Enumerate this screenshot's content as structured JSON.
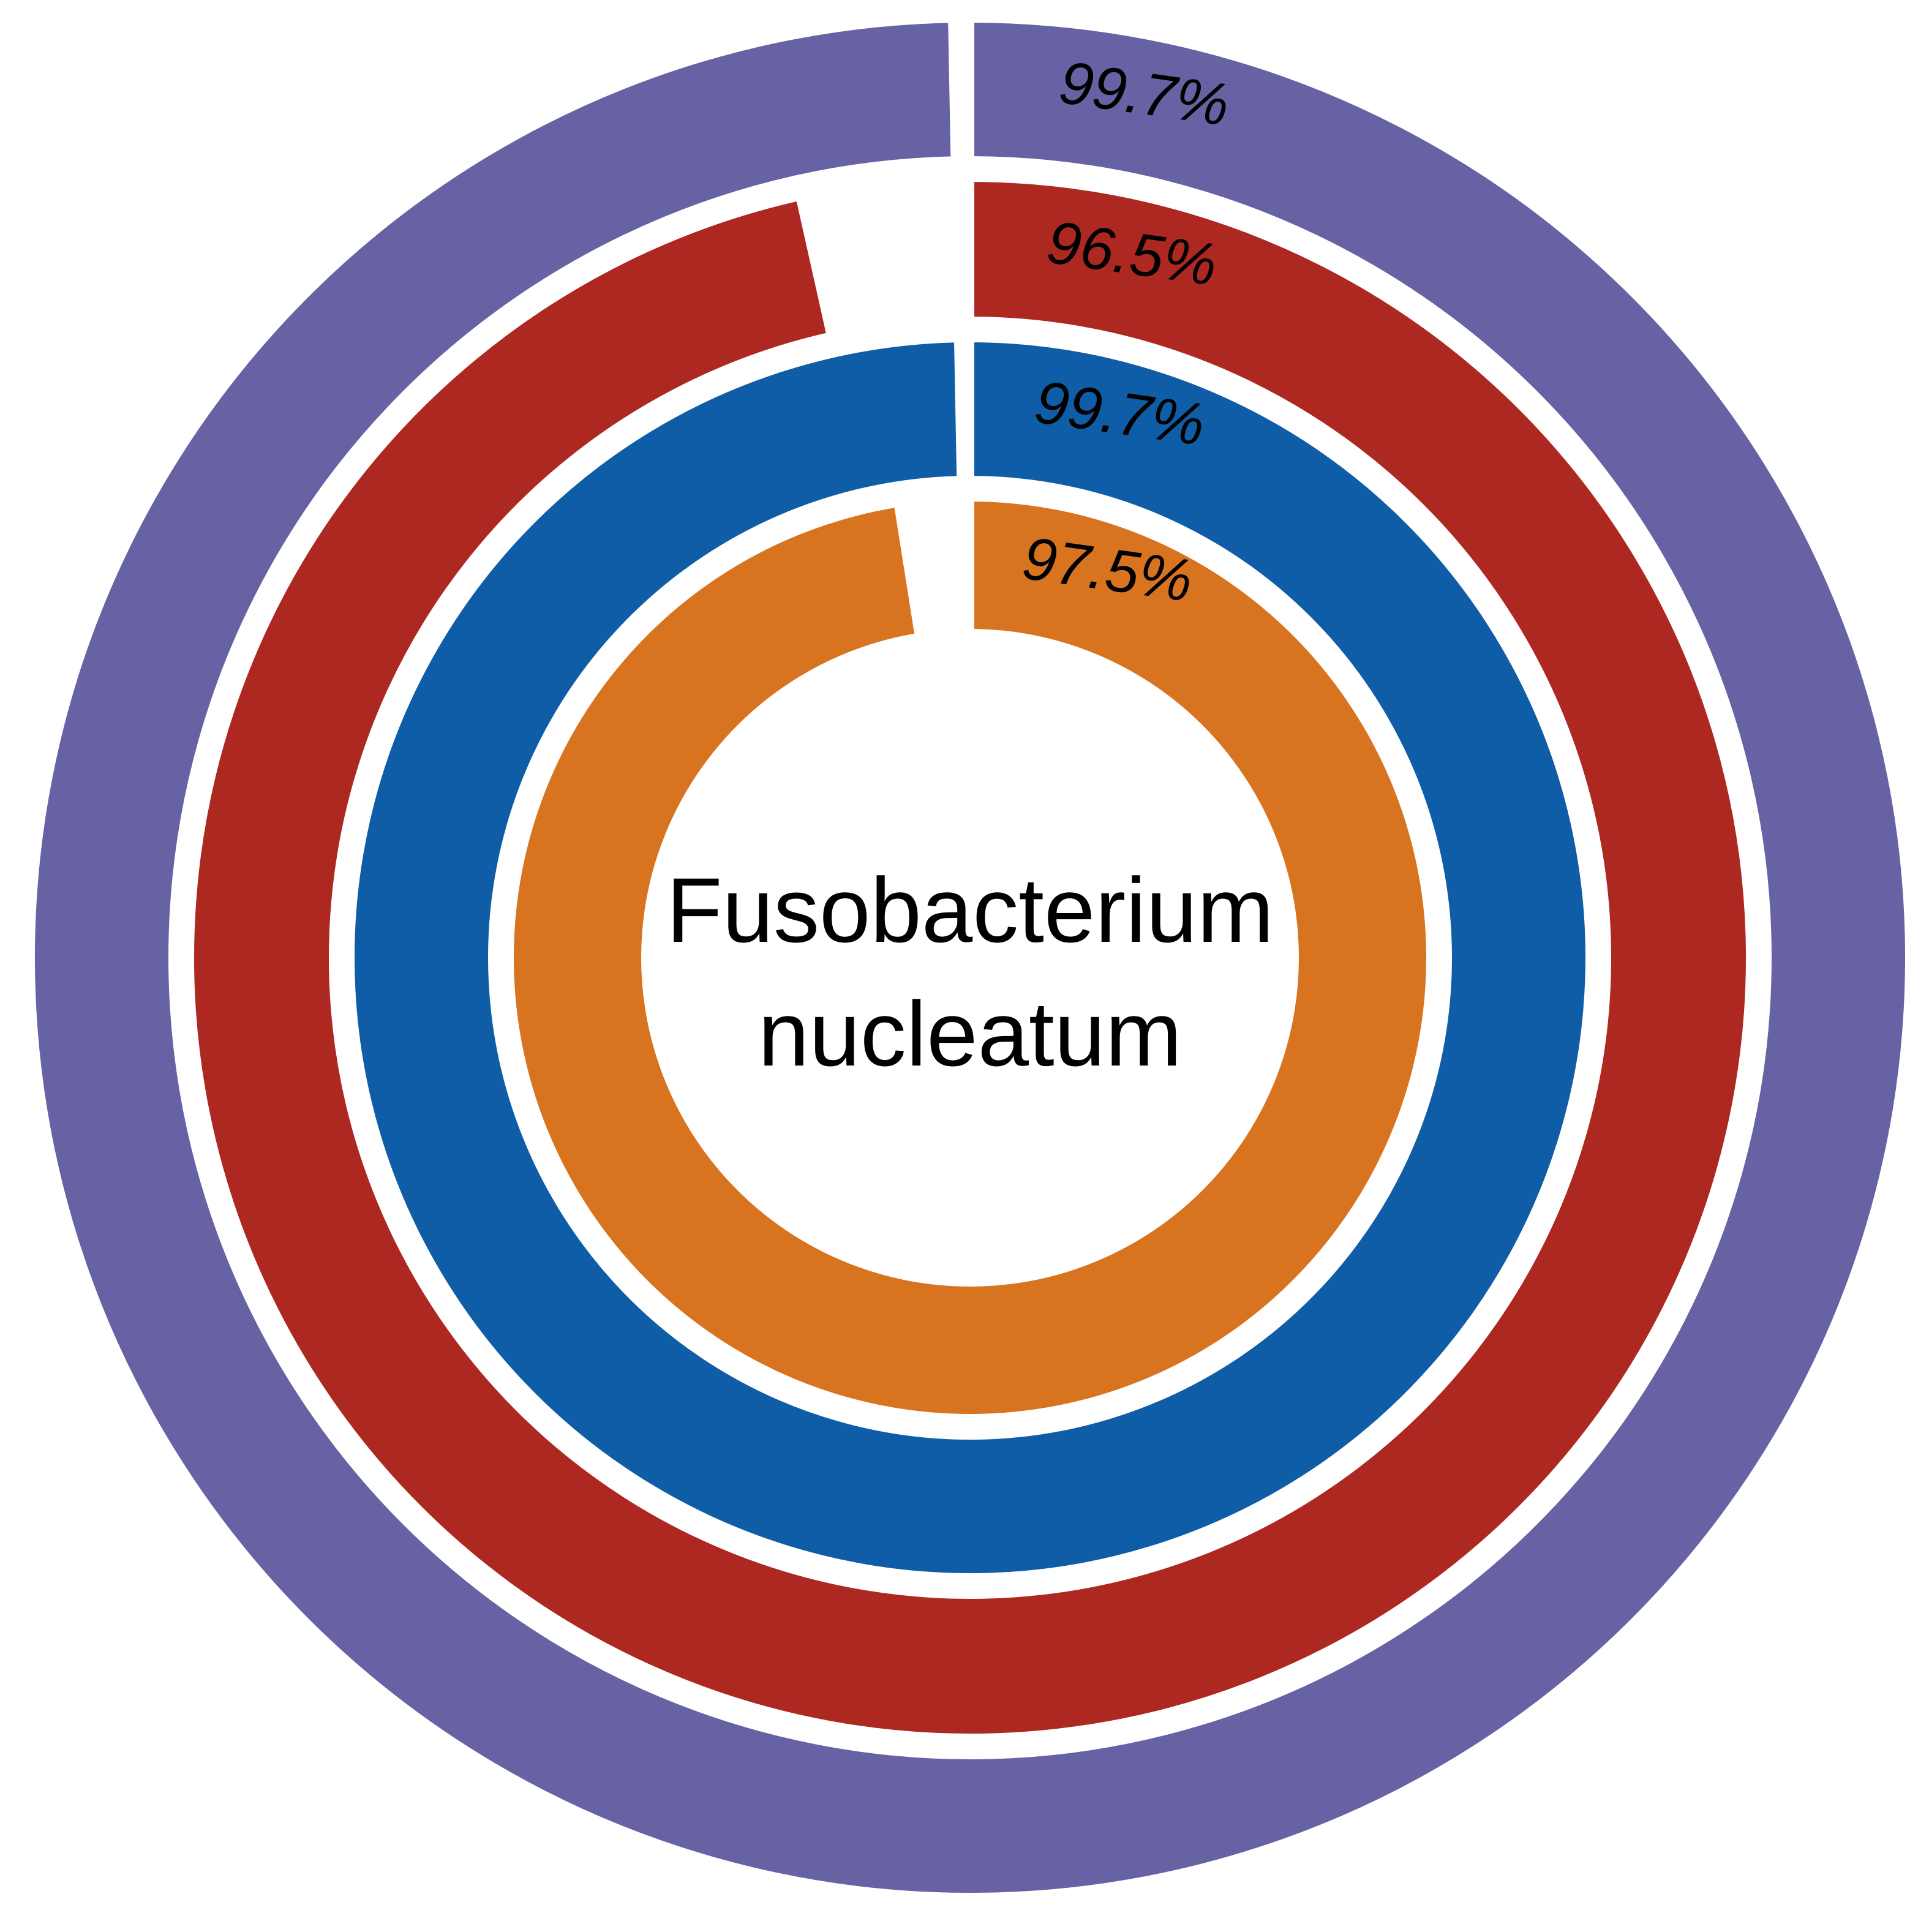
{
  "chart_data": {
    "type": "pie",
    "title": "",
    "center_label": [
      "Fusobacterium",
      "nucleatum"
    ],
    "series": [
      {
        "value": 99.7,
        "label": "99.7%",
        "color": "#6662A3"
      },
      {
        "value": 96.5,
        "label": "96.5%",
        "color": "#AD2821"
      },
      {
        "value": 99.7,
        "label": "99.7%",
        "color": "#0F5DA6"
      },
      {
        "value": 97.5,
        "label": "97.5%",
        "color": "#D8731F"
      }
    ]
  },
  "colors": {
    "background": "#FFFFFF",
    "ring_border": "#FFFFFF",
    "text": "#000000"
  }
}
